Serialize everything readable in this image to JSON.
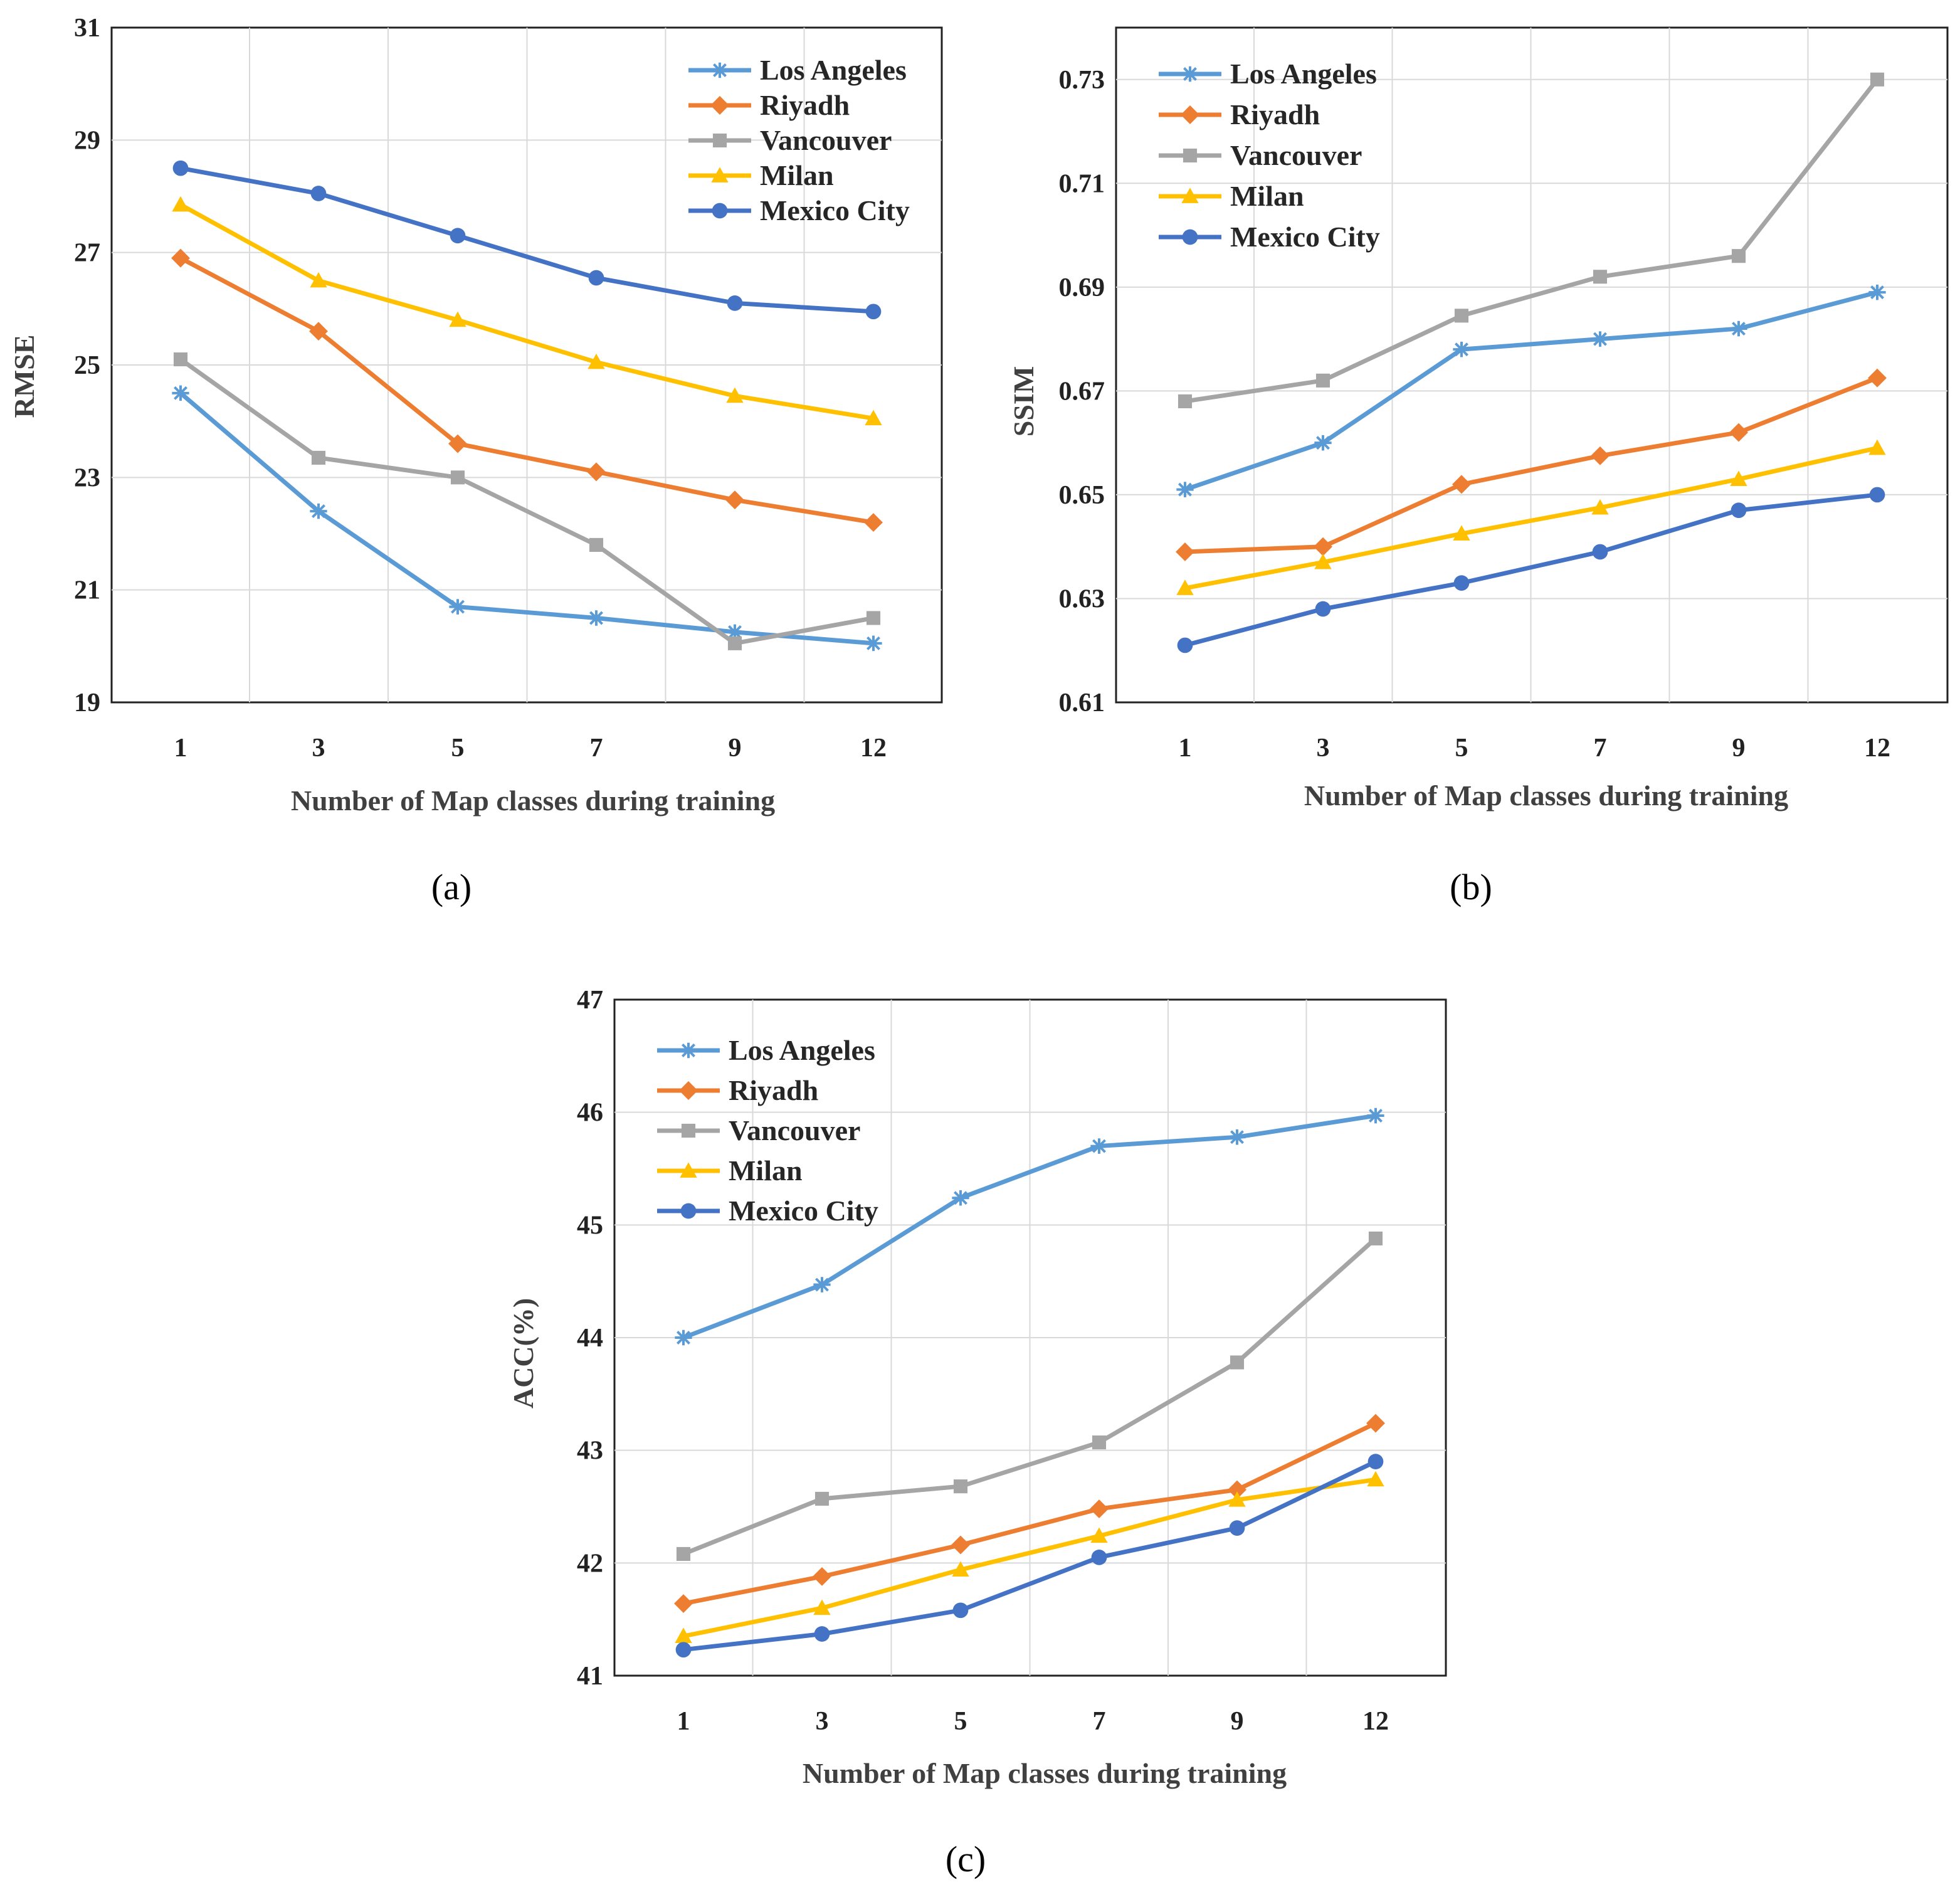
{
  "colors": {
    "Los Angeles": "#5b9bd5",
    "Riyadh": "#ed7d31",
    "Vancouver": "#a5a5a5",
    "Milan": "#ffc000",
    "Mexico City": "#4472c4"
  },
  "chart_data": [
    {
      "type": "line",
      "panel_label": "(a)",
      "xlabel": "Number of Map classes during training",
      "ylabel": "RMSE",
      "categories": [
        "1",
        "3",
        "5",
        "7",
        "9",
        "12"
      ],
      "ylim": [
        19,
        31
      ],
      "yticks": [
        "19",
        "21",
        "23",
        "25",
        "27",
        "29",
        "31"
      ],
      "grid": true,
      "legend_position": "top-right",
      "series": [
        {
          "name": "Los Angeles",
          "marker": "asterisk",
          "values": [
            24.5,
            22.4,
            20.7,
            20.5,
            20.25,
            20.05
          ]
        },
        {
          "name": "Riyadh",
          "marker": "diamond",
          "values": [
            26.9,
            25.6,
            23.6,
            23.1,
            22.6,
            22.2
          ]
        },
        {
          "name": "Vancouver",
          "marker": "square",
          "values": [
            25.1,
            23.35,
            23.0,
            21.8,
            20.05,
            20.5
          ]
        },
        {
          "name": "Milan",
          "marker": "triangle",
          "values": [
            27.85,
            26.5,
            25.8,
            25.05,
            24.45,
            24.05
          ]
        },
        {
          "name": "Mexico City",
          "marker": "circle",
          "values": [
            28.5,
            28.05,
            27.3,
            26.55,
            26.1,
            25.95
          ]
        }
      ]
    },
    {
      "type": "line",
      "panel_label": "(b)",
      "xlabel": "Number of Map classes during training",
      "ylabel": "SSIM",
      "categories": [
        "1",
        "3",
        "5",
        "7",
        "9",
        "12"
      ],
      "ylim": [
        0.61,
        0.74
      ],
      "yticks": [
        "0.61",
        "0.63",
        "0.65",
        "0.67",
        "0.69",
        "0.71",
        "0.73"
      ],
      "grid": true,
      "legend_position": "top-left",
      "series": [
        {
          "name": "Los Angeles",
          "marker": "asterisk",
          "values": [
            0.651,
            0.66,
            0.678,
            0.68,
            0.682,
            0.689
          ]
        },
        {
          "name": "Riyadh",
          "marker": "diamond",
          "values": [
            0.639,
            0.64,
            0.652,
            0.6575,
            0.662,
            0.6725
          ]
        },
        {
          "name": "Vancouver",
          "marker": "square",
          "values": [
            0.668,
            0.672,
            0.6845,
            0.692,
            0.696,
            0.73
          ]
        },
        {
          "name": "Milan",
          "marker": "triangle",
          "values": [
            0.632,
            0.637,
            0.6425,
            0.6475,
            0.653,
            0.659
          ]
        },
        {
          "name": "Mexico City",
          "marker": "circle",
          "values": [
            0.621,
            0.628,
            0.633,
            0.639,
            0.647,
            0.65
          ]
        }
      ]
    },
    {
      "type": "line",
      "panel_label": "(c)",
      "xlabel": "Number of Map classes during training",
      "ylabel": "ACC(%)",
      "categories": [
        "1",
        "3",
        "5",
        "7",
        "9",
        "12"
      ],
      "ylim": [
        41,
        47
      ],
      "yticks": [
        "41",
        "42",
        "43",
        "44",
        "45",
        "46",
        "47"
      ],
      "grid": true,
      "legend_position": "top-left",
      "series": [
        {
          "name": "Los Angeles",
          "marker": "asterisk",
          "values": [
            44.0,
            44.47,
            45.24,
            45.7,
            45.78,
            45.97
          ]
        },
        {
          "name": "Riyadh",
          "marker": "diamond",
          "values": [
            41.64,
            41.88,
            42.16,
            42.48,
            42.65,
            43.24
          ]
        },
        {
          "name": "Vancouver",
          "marker": "square",
          "values": [
            42.08,
            42.57,
            42.68,
            43.07,
            43.78,
            44.88
          ]
        },
        {
          "name": "Milan",
          "marker": "triangle",
          "values": [
            41.35,
            41.6,
            41.94,
            42.24,
            42.56,
            42.74
          ]
        },
        {
          "name": "Mexico City",
          "marker": "circle",
          "values": [
            41.23,
            41.37,
            41.58,
            42.05,
            42.31,
            42.9
          ]
        }
      ]
    }
  ]
}
